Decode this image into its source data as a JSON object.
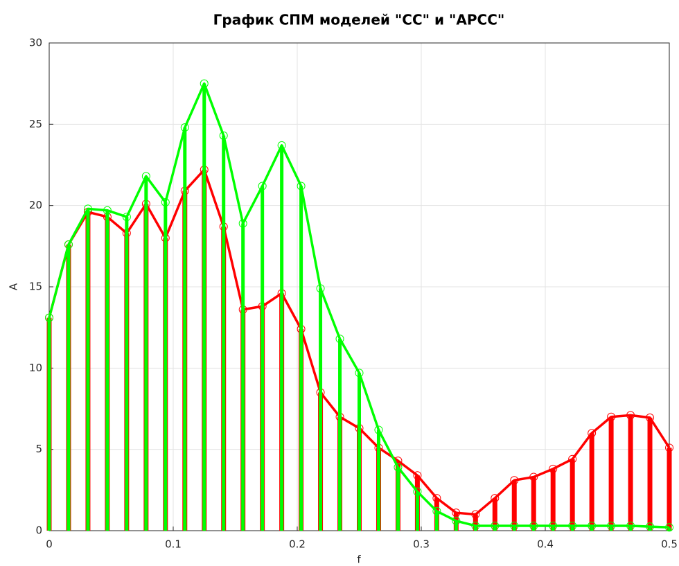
{
  "chart_data": {
    "type": "stem",
    "title": "График СПМ моделей \"СС\" и \"АРСС\"",
    "x_label": "f",
    "y_label": "A",
    "x": [
      0,
      0.015625,
      0.03125,
      0.046875,
      0.0625,
      0.078125,
      0.09375,
      0.109375,
      0.125,
      0.140625,
      0.15625,
      0.171875,
      0.1875,
      0.203125,
      0.21875,
      0.234375,
      0.25,
      0.265625,
      0.28125,
      0.296875,
      0.3125,
      0.328125,
      0.34375,
      0.359375,
      0.375,
      0.390625,
      0.40625,
      0.421875,
      0.4375,
      0.453125,
      0.46875,
      0.484375,
      0.5
    ],
    "series": [
      {
        "color": "#ff0000",
        "values": [
          13.1,
          17.6,
          19.6,
          19.3,
          18.3,
          20.1,
          18.0,
          20.9,
          22.2,
          18.7,
          13.6,
          13.8,
          14.6,
          12.4,
          8.5,
          7.0,
          6.3,
          5.1,
          4.3,
          3.4,
          2.0,
          1.1,
          1.0,
          2.0,
          3.1,
          3.3,
          3.8,
          4.4,
          6.0,
          7.0,
          7.1,
          6.95,
          5.1
        ]
      },
      {
        "color": "#00ff00",
        "values": [
          13.1,
          17.6,
          19.8,
          19.7,
          19.3,
          21.8,
          20.2,
          24.8,
          27.5,
          24.3,
          18.9,
          21.2,
          23.7,
          21.2,
          14.9,
          11.8,
          9.7,
          6.2,
          3.9,
          2.4,
          1.2,
          0.6,
          0.3,
          0.3,
          0.3,
          0.3,
          0.3,
          0.3,
          0.3,
          0.3,
          0.3,
          0.25,
          0.2
        ]
      }
    ],
    "xlim": [
      0,
      0.5
    ],
    "xticks": [
      0,
      0.1,
      0.2,
      0.3,
      0.4,
      0.5
    ],
    "ylim": [
      0,
      30
    ],
    "yticks": [
      0,
      5,
      10,
      15,
      20,
      25,
      30
    ],
    "grid": true
  }
}
